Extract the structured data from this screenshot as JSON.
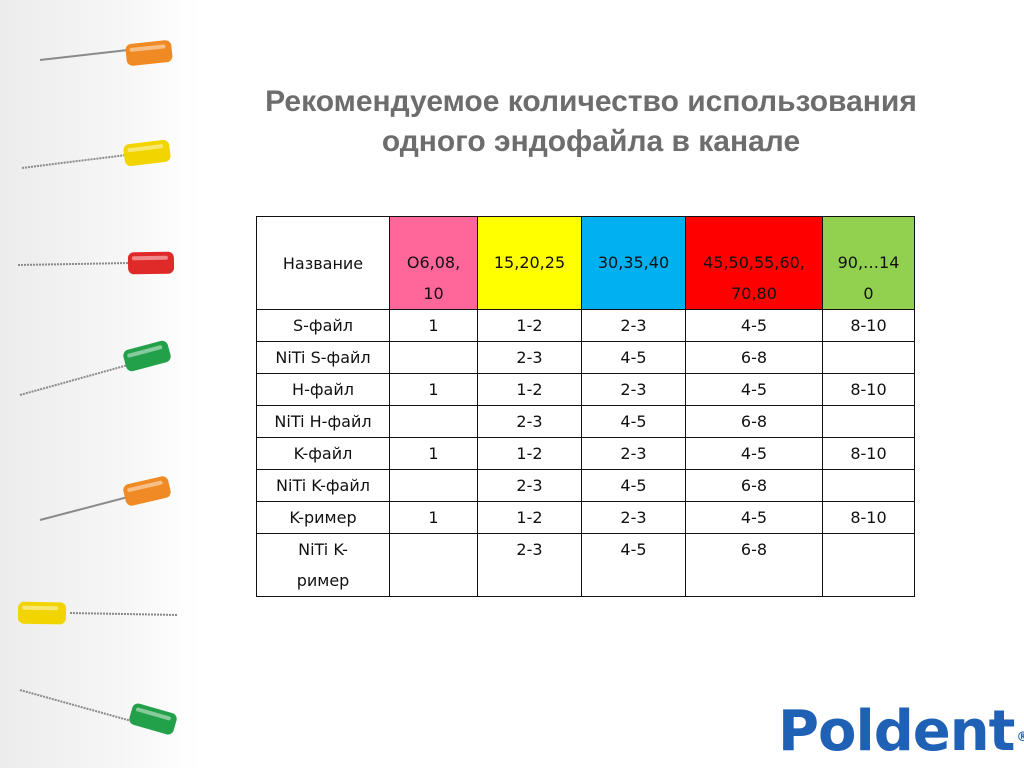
{
  "title": {
    "line1": "Рекомендуемое количество использования",
    "line2": "одного эндофайла в канале"
  },
  "table": {
    "header": {
      "name": "Название",
      "sizes": [
        {
          "text": "O6,08,\n10",
          "color": "#ff6699"
        },
        {
          "text": "15,20,25",
          "color": "#ffff00"
        },
        {
          "text": "30,35,40",
          "color": "#00b0f0"
        },
        {
          "text": "45,50,55,60,\n70,80",
          "color": "#ff0000"
        },
        {
          "text": "90,…14\n0",
          "color": "#92d050"
        }
      ]
    },
    "rows": [
      {
        "name": "S-файл",
        "values": [
          "1",
          "1-2",
          "2-3",
          "4-5",
          "8-10"
        ]
      },
      {
        "name": "NiTi S-файл",
        "values": [
          "",
          "2-3",
          "4-5",
          "6-8",
          ""
        ]
      },
      {
        "name": "H-файл",
        "values": [
          "1",
          "1-2",
          "2-3",
          "4-5",
          "8-10"
        ]
      },
      {
        "name": "NiTi H-файл",
        "values": [
          "",
          "2-3",
          "4-5",
          "6-8",
          ""
        ]
      },
      {
        "name": "K-файл",
        "values": [
          "1",
          "1-2",
          "2-3",
          "4-5",
          "8-10"
        ]
      },
      {
        "name": "NiTi K-файл",
        "values": [
          "",
          "2-3",
          "4-5",
          "6-8",
          ""
        ]
      },
      {
        "name": "K-ример",
        "values": [
          "1",
          "1-2",
          "2-3",
          "4-5",
          "8-10"
        ]
      },
      {
        "name": "NiTi K-\nример",
        "values": [
          "",
          "2-3",
          "4-5",
          "6-8",
          ""
        ]
      }
    ]
  },
  "logo": {
    "text": "Poldent",
    "reg": "®",
    "color": "#1f61b4"
  },
  "sidebar_instruments": [
    {
      "icon": "endodontic-file-icon",
      "color": "#f08a24"
    },
    {
      "icon": "endodontic-file-icon",
      "color": "#f2d400"
    },
    {
      "icon": "endodontic-file-icon",
      "color": "#e02a2a"
    },
    {
      "icon": "endodontic-file-icon",
      "color": "#22a04a"
    },
    {
      "icon": "endodontic-file-icon",
      "color": "#f08a24"
    },
    {
      "icon": "endodontic-file-icon",
      "color": "#f2d400"
    },
    {
      "icon": "endodontic-file-icon",
      "color": "#22a04a"
    }
  ]
}
